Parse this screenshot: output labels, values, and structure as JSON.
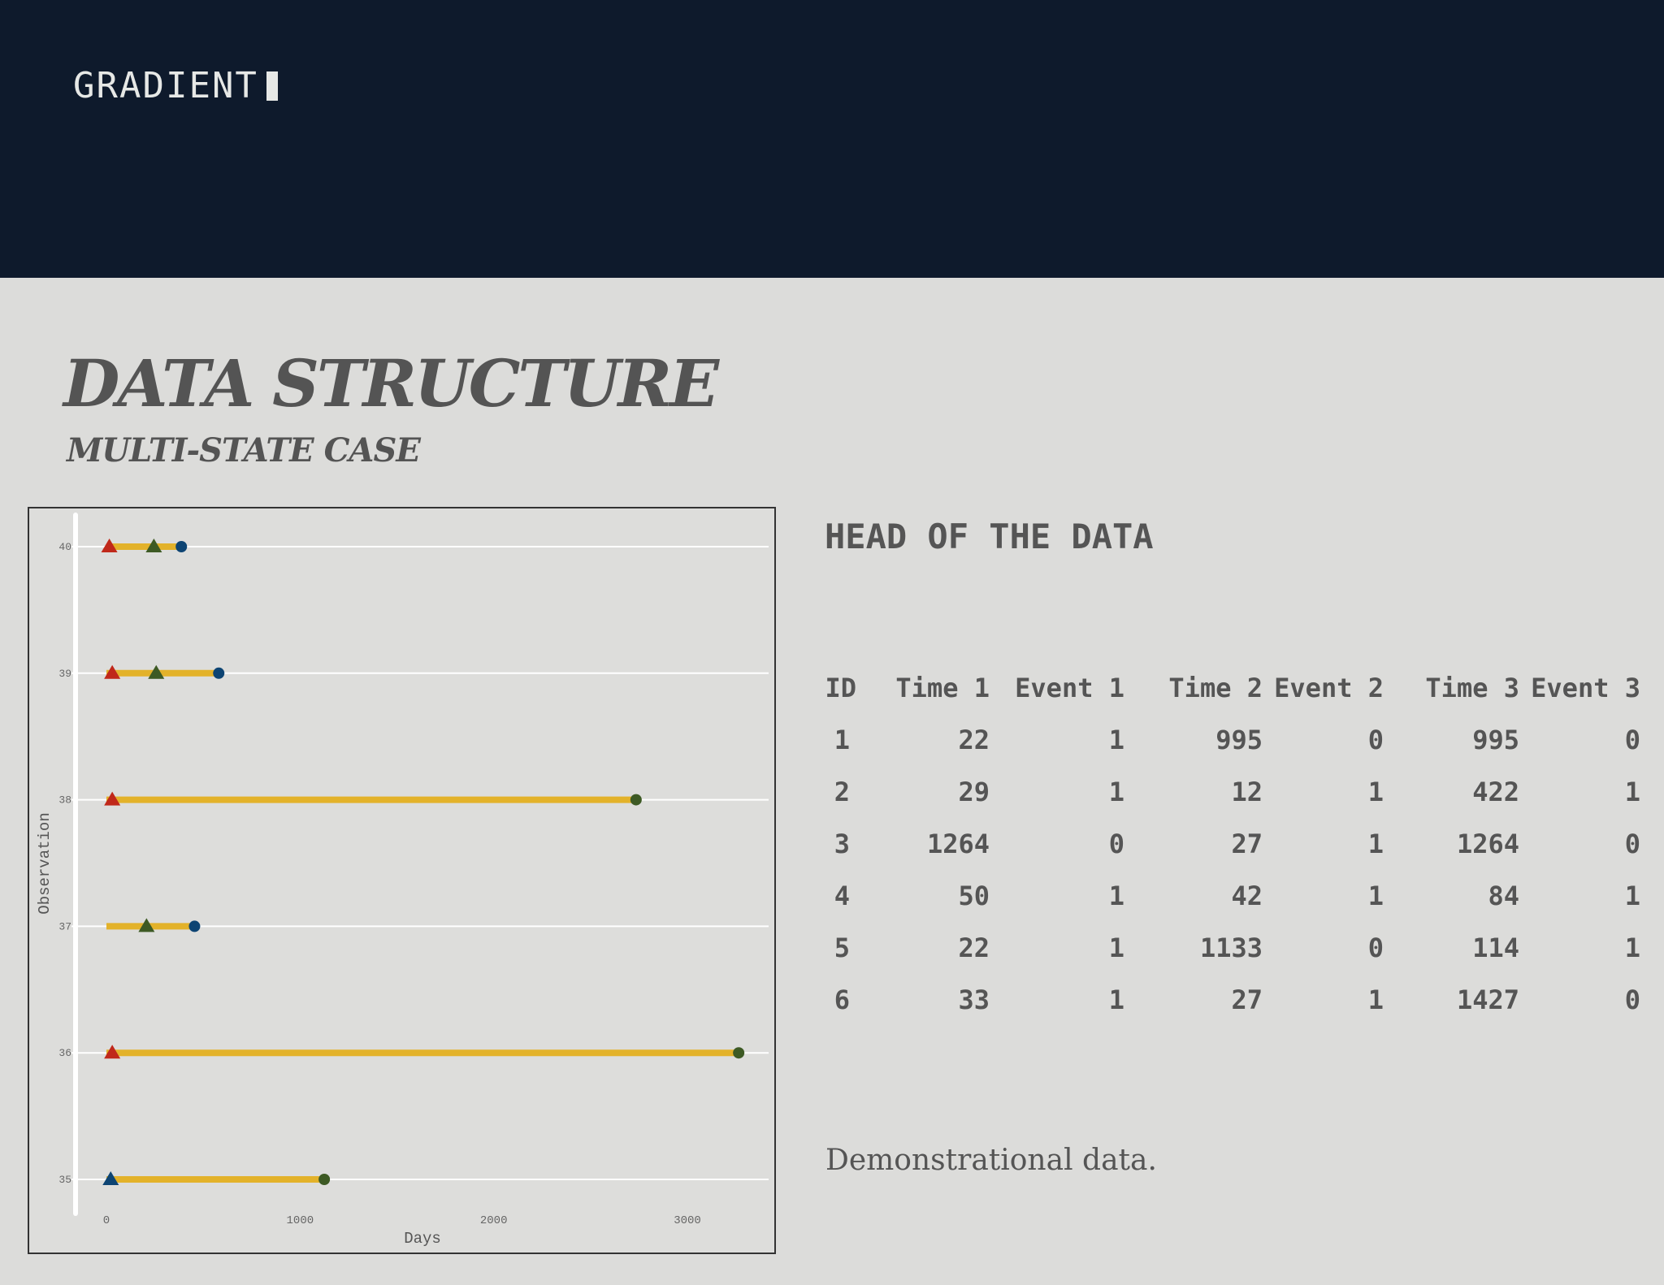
{
  "brand": {
    "name": "GRADIENT"
  },
  "slide": {
    "title": "DATA STRUCTURE",
    "subtitle": "MULTI-STATE CASE",
    "table_heading": "HEAD OF THE DATA",
    "note": "Demonstrational data."
  },
  "table": {
    "columns": [
      "ID",
      "Time 1",
      "Event 1",
      "Time 2",
      "Event 2",
      "Time 3",
      "Event 3"
    ],
    "rows": [
      [
        "1",
        "22",
        "1",
        "995",
        "0",
        "995",
        "0"
      ],
      [
        "2",
        "29",
        "1",
        "12",
        "1",
        "422",
        "1"
      ],
      [
        "3",
        "1264",
        "0",
        "27",
        "1",
        "1264",
        "0"
      ],
      [
        "4",
        "50",
        "1",
        "42",
        "1",
        "84",
        "1"
      ],
      [
        "5",
        "22",
        "1",
        "1133",
        "0",
        "114",
        "1"
      ],
      [
        "6",
        "33",
        "1",
        "27",
        "1",
        "1427",
        "0"
      ]
    ]
  },
  "colors": {
    "header": "#0e1a2c",
    "segment": "#e3b22a",
    "red": "#c0281a",
    "green": "#3d5a24",
    "blue": "#0d4473"
  },
  "chart_data": {
    "type": "scatter",
    "xlabel": "Days",
    "ylabel": "Observation",
    "xlim": [
      -150,
      3400
    ],
    "ylim": [
      34.8,
      40.2
    ],
    "xticks": [
      0,
      1000,
      2000,
      3000
    ],
    "yticks": [
      35,
      36,
      37,
      38,
      39,
      40
    ],
    "grid": "horizontal",
    "observations": [
      {
        "id": 40,
        "end": 387,
        "markers": [
          {
            "x": 15,
            "shape": "triangle",
            "color": "red"
          },
          {
            "x": 245,
            "shape": "triangle",
            "color": "green"
          },
          {
            "x": 387,
            "shape": "circle",
            "color": "blue"
          }
        ]
      },
      {
        "id": 39,
        "end": 580,
        "markers": [
          {
            "x": 30,
            "shape": "triangle",
            "color": "red"
          },
          {
            "x": 257,
            "shape": "triangle",
            "color": "green"
          },
          {
            "x": 580,
            "shape": "circle",
            "color": "blue"
          }
        ]
      },
      {
        "id": 38,
        "end": 2735,
        "markers": [
          {
            "x": 30,
            "shape": "triangle",
            "color": "red"
          },
          {
            "x": 2735,
            "shape": "circle",
            "color": "green"
          }
        ]
      },
      {
        "id": 37,
        "end": 455,
        "markers": [
          {
            "x": 207,
            "shape": "triangle",
            "color": "green"
          },
          {
            "x": 455,
            "shape": "circle",
            "color": "blue"
          }
        ]
      },
      {
        "id": 36,
        "end": 3265,
        "markers": [
          {
            "x": 30,
            "shape": "triangle",
            "color": "red"
          },
          {
            "x": 3265,
            "shape": "circle",
            "color": "green"
          }
        ]
      },
      {
        "id": 35,
        "end": 1125,
        "markers": [
          {
            "x": 22,
            "shape": "triangle",
            "color": "blue"
          },
          {
            "x": 1125,
            "shape": "circle",
            "color": "green"
          }
        ]
      }
    ]
  }
}
